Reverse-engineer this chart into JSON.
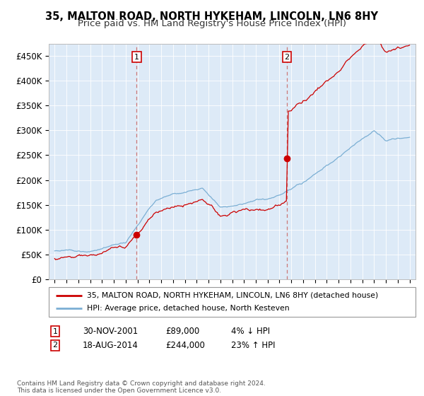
{
  "title": "35, MALTON ROAD, NORTH HYKEHAM, LINCOLN, LN6 8HY",
  "subtitle": "Price paid vs. HM Land Registry's House Price Index (HPI)",
  "title_fontsize": 10.5,
  "subtitle_fontsize": 9.5,
  "background_color": "#ffffff",
  "plot_bg_color": "#ddeaf7",
  "legend_line1": "35, MALTON ROAD, NORTH HYKEHAM, LINCOLN, LN6 8HY (detached house)",
  "legend_line2": "HPI: Average price, detached house, North Kesteven",
  "red_color": "#cc0000",
  "blue_color": "#7bafd4",
  "dashed_color": "#cc7777",
  "footnote": "Contains HM Land Registry data © Crown copyright and database right 2024.\nThis data is licensed under the Open Government Licence v3.0.",
  "sale1_date_num": 2001.92,
  "sale1_price": 89000,
  "sale1_label": "1",
  "sale2_date_num": 2014.63,
  "sale2_price": 244000,
  "sale2_label": "2",
  "ylim": [
    0,
    475000
  ],
  "xlim_start": 1994.5,
  "xlim_end": 2025.5,
  "yticks": [
    0,
    50000,
    100000,
    150000,
    200000,
    250000,
    300000,
    350000,
    400000,
    450000
  ],
  "ytick_labels": [
    "£0",
    "£50K",
    "£100K",
    "£150K",
    "£200K",
    "£250K",
    "£300K",
    "£350K",
    "£400K",
    "£450K"
  ],
  "xticks": [
    1995,
    1996,
    1997,
    1998,
    1999,
    2000,
    2001,
    2002,
    2003,
    2004,
    2005,
    2006,
    2007,
    2008,
    2009,
    2010,
    2011,
    2012,
    2013,
    2014,
    2015,
    2016,
    2017,
    2018,
    2019,
    2020,
    2021,
    2022,
    2023,
    2024,
    2025
  ]
}
